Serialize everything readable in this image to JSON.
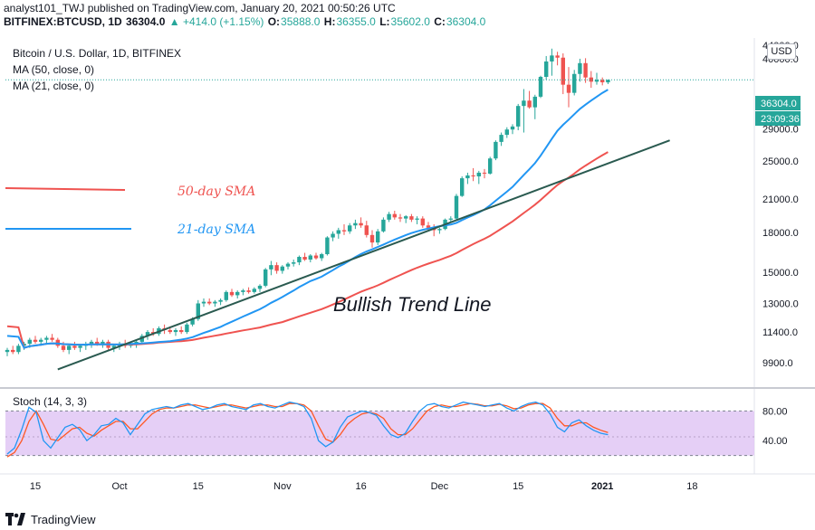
{
  "header": {
    "publisher_line": "analyst101_TWJ published on TradingView.com, January 20, 2021 00:50:26 UTC",
    "symbol": "BITFINEX:BTCUSD, 1D",
    "last": "36304.0",
    "change": "▲ +414.0 (+1.15%)",
    "o_label": "O:",
    "o": "35888.0",
    "h_label": "H:",
    "h": "36355.0",
    "l_label": "L:",
    "l": "35602.0",
    "c_label": "C:",
    "c": "36304.0"
  },
  "legend": {
    "title": "Bitcoin / U.S. Dollar, 1D, BITFINEX",
    "ma50": "MA (50, close, 0)",
    "ma21": "MA (21, close, 0)"
  },
  "stoch_label": "Stoch (14, 3, 3)",
  "currency": "USD",
  "price_tag": "36304.0",
  "countdown_tag": "23:09:36",
  "annotations": {
    "sma50": "50-day SMA",
    "sma21": "21-day SMA",
    "trend": "Bullish Trend Line"
  },
  "footer": {
    "brand": "TradingView"
  },
  "colors": {
    "up": "#26a69a",
    "down": "#ef5350",
    "ma50": "#ef5350",
    "ma21": "#2196f3",
    "trend": "#2a5a50",
    "stoch_k": "#2196f3",
    "stoch_d": "#ff5722",
    "stoch_band": "#e1c7f5"
  },
  "chart_data": {
    "type": "candlestick",
    "y_ticks": [
      "40000.0",
      "29000.0",
      "25000.0",
      "21000.0",
      "18000.0",
      "15000.0",
      "13000.0",
      "11400.0",
      "9900.0"
    ],
    "y_ticks_top": "44000.0",
    "x_ticks": [
      "15",
      "Oct",
      "15",
      "Nov",
      "16",
      "Dec",
      "15",
      "2021",
      "18"
    ],
    "stoch_ticks": [
      "80.00",
      "40.00"
    ],
    "ylim": [
      9000,
      44000
    ],
    "stoch_ylim": [
      0,
      100
    ],
    "stoch_band": [
      20,
      80
    ],
    "candles": [
      {
        "o": 10400,
        "h": 10600,
        "l": 10200,
        "c": 10500
      },
      {
        "o": 10500,
        "h": 10700,
        "l": 10300,
        "c": 10400
      },
      {
        "o": 10400,
        "h": 10800,
        "l": 10300,
        "c": 10700
      },
      {
        "o": 10700,
        "h": 10900,
        "l": 10500,
        "c": 10800
      },
      {
        "o": 10800,
        "h": 11100,
        "l": 10600,
        "c": 11000
      },
      {
        "o": 11000,
        "h": 11200,
        "l": 10800,
        "c": 10900
      },
      {
        "o": 10900,
        "h": 11100,
        "l": 10700,
        "c": 11000
      },
      {
        "o": 11000,
        "h": 11200,
        "l": 10800,
        "c": 11100
      },
      {
        "o": 11100,
        "h": 11300,
        "l": 10900,
        "c": 11000
      },
      {
        "o": 11000,
        "h": 11100,
        "l": 10600,
        "c": 10700
      },
      {
        "o": 10700,
        "h": 10900,
        "l": 10400,
        "c": 10500
      },
      {
        "o": 10500,
        "h": 10800,
        "l": 10300,
        "c": 10700
      },
      {
        "o": 10700,
        "h": 10900,
        "l": 10500,
        "c": 10600
      },
      {
        "o": 10600,
        "h": 10800,
        "l": 10400,
        "c": 10700
      },
      {
        "o": 10700,
        "h": 10900,
        "l": 10500,
        "c": 10800
      },
      {
        "o": 10800,
        "h": 11000,
        "l": 10600,
        "c": 10900
      },
      {
        "o": 10900,
        "h": 11100,
        "l": 10700,
        "c": 10800
      },
      {
        "o": 10800,
        "h": 11000,
        "l": 10600,
        "c": 10900
      },
      {
        "o": 10900,
        "h": 11000,
        "l": 10500,
        "c": 10600
      },
      {
        "o": 10600,
        "h": 10800,
        "l": 10400,
        "c": 10700
      },
      {
        "o": 10700,
        "h": 10900,
        "l": 10500,
        "c": 10800
      },
      {
        "o": 10800,
        "h": 11000,
        "l": 10600,
        "c": 10700
      },
      {
        "o": 10700,
        "h": 10900,
        "l": 10600,
        "c": 10800
      },
      {
        "o": 10800,
        "h": 11000,
        "l": 10600,
        "c": 10900
      },
      {
        "o": 10900,
        "h": 11300,
        "l": 10800,
        "c": 11200
      },
      {
        "o": 11200,
        "h": 11500,
        "l": 11000,
        "c": 11400
      },
      {
        "o": 11400,
        "h": 11600,
        "l": 11200,
        "c": 11300
      },
      {
        "o": 11300,
        "h": 11700,
        "l": 11200,
        "c": 11600
      },
      {
        "o": 11600,
        "h": 11800,
        "l": 11300,
        "c": 11500
      },
      {
        "o": 11500,
        "h": 11700,
        "l": 11300,
        "c": 11400
      },
      {
        "o": 11400,
        "h": 11600,
        "l": 11200,
        "c": 11500
      },
      {
        "o": 11500,
        "h": 11700,
        "l": 11300,
        "c": 11400
      },
      {
        "o": 11400,
        "h": 11900,
        "l": 11300,
        "c": 11800
      },
      {
        "o": 11800,
        "h": 12200,
        "l": 11700,
        "c": 12100
      },
      {
        "o": 12100,
        "h": 13200,
        "l": 12000,
        "c": 13000
      },
      {
        "o": 13000,
        "h": 13300,
        "l": 12800,
        "c": 13100
      },
      {
        "o": 13100,
        "h": 13300,
        "l": 12900,
        "c": 13000
      },
      {
        "o": 13000,
        "h": 13200,
        "l": 12800,
        "c": 13100
      },
      {
        "o": 13100,
        "h": 13300,
        "l": 12900,
        "c": 13200
      },
      {
        "o": 13200,
        "h": 13800,
        "l": 13100,
        "c": 13700
      },
      {
        "o": 13700,
        "h": 13900,
        "l": 13400,
        "c": 13500
      },
      {
        "o": 13500,
        "h": 13800,
        "l": 13300,
        "c": 13700
      },
      {
        "o": 13700,
        "h": 13900,
        "l": 13500,
        "c": 13800
      },
      {
        "o": 13800,
        "h": 14000,
        "l": 13600,
        "c": 13700
      },
      {
        "o": 13700,
        "h": 14000,
        "l": 13600,
        "c": 13900
      },
      {
        "o": 13900,
        "h": 14200,
        "l": 13700,
        "c": 14100
      },
      {
        "o": 14100,
        "h": 15300,
        "l": 14000,
        "c": 15200
      },
      {
        "o": 15200,
        "h": 15800,
        "l": 14800,
        "c": 15500
      },
      {
        "o": 15500,
        "h": 15700,
        "l": 14900,
        "c": 15100
      },
      {
        "o": 15100,
        "h": 15500,
        "l": 14900,
        "c": 15400
      },
      {
        "o": 15400,
        "h": 15700,
        "l": 15200,
        "c": 15600
      },
      {
        "o": 15600,
        "h": 15900,
        "l": 15400,
        "c": 15700
      },
      {
        "o": 15700,
        "h": 16200,
        "l": 15500,
        "c": 16100
      },
      {
        "o": 16100,
        "h": 16400,
        "l": 15800,
        "c": 15900
      },
      {
        "o": 15900,
        "h": 16300,
        "l": 15700,
        "c": 16200
      },
      {
        "o": 16200,
        "h": 16400,
        "l": 15900,
        "c": 16000
      },
      {
        "o": 16000,
        "h": 16400,
        "l": 15800,
        "c": 16300
      },
      {
        "o": 16300,
        "h": 17700,
        "l": 16200,
        "c": 17600
      },
      {
        "o": 17600,
        "h": 18100,
        "l": 17300,
        "c": 17900
      },
      {
        "o": 17900,
        "h": 18400,
        "l": 17500,
        "c": 18200
      },
      {
        "o": 18200,
        "h": 18700,
        "l": 17800,
        "c": 18100
      },
      {
        "o": 18100,
        "h": 18800,
        "l": 17900,
        "c": 18600
      },
      {
        "o": 18600,
        "h": 19100,
        "l": 18300,
        "c": 18800
      },
      {
        "o": 18800,
        "h": 19300,
        "l": 18400,
        "c": 18600
      },
      {
        "o": 18600,
        "h": 19000,
        "l": 17600,
        "c": 17800
      },
      {
        "o": 17800,
        "h": 18200,
        "l": 16800,
        "c": 17200
      },
      {
        "o": 17200,
        "h": 18300,
        "l": 17000,
        "c": 18100
      },
      {
        "o": 18100,
        "h": 19300,
        "l": 18000,
        "c": 19100
      },
      {
        "o": 19100,
        "h": 19800,
        "l": 18900,
        "c": 19600
      },
      {
        "o": 19600,
        "h": 19900,
        "l": 19100,
        "c": 19300
      },
      {
        "o": 19300,
        "h": 19600,
        "l": 18900,
        "c": 19200
      },
      {
        "o": 19200,
        "h": 19500,
        "l": 18800,
        "c": 19400
      },
      {
        "o": 19400,
        "h": 19600,
        "l": 18900,
        "c": 19100
      },
      {
        "o": 19100,
        "h": 19400,
        "l": 18700,
        "c": 19200
      },
      {
        "o": 19200,
        "h": 19400,
        "l": 18400,
        "c": 18600
      },
      {
        "o": 18600,
        "h": 18900,
        "l": 18200,
        "c": 18400
      },
      {
        "o": 18400,
        "h": 18700,
        "l": 17700,
        "c": 18200
      },
      {
        "o": 18200,
        "h": 18400,
        "l": 17900,
        "c": 18300
      },
      {
        "o": 18300,
        "h": 19200,
        "l": 18200,
        "c": 19100
      },
      {
        "o": 19100,
        "h": 19400,
        "l": 18900,
        "c": 19200
      },
      {
        "o": 19200,
        "h": 21500,
        "l": 19100,
        "c": 21300
      },
      {
        "o": 21300,
        "h": 23300,
        "l": 21200,
        "c": 23100
      },
      {
        "o": 23100,
        "h": 23700,
        "l": 22500,
        "c": 23400
      },
      {
        "o": 23400,
        "h": 24200,
        "l": 22800,
        "c": 23300
      },
      {
        "o": 23300,
        "h": 23900,
        "l": 22500,
        "c": 23700
      },
      {
        "o": 23700,
        "h": 24100,
        "l": 23100,
        "c": 23600
      },
      {
        "o": 23600,
        "h": 25500,
        "l": 23500,
        "c": 25300
      },
      {
        "o": 25300,
        "h": 27500,
        "l": 25100,
        "c": 27300
      },
      {
        "o": 27300,
        "h": 28500,
        "l": 26800,
        "c": 28200
      },
      {
        "o": 28200,
        "h": 29200,
        "l": 27800,
        "c": 28900
      },
      {
        "o": 28900,
        "h": 29600,
        "l": 28300,
        "c": 29300
      },
      {
        "o": 29300,
        "h": 32500,
        "l": 28800,
        "c": 32200
      },
      {
        "o": 32200,
        "h": 34800,
        "l": 28500,
        "c": 33000
      },
      {
        "o": 33000,
        "h": 34500,
        "l": 31800,
        "c": 32000
      },
      {
        "o": 32000,
        "h": 33900,
        "l": 30300,
        "c": 33600
      },
      {
        "o": 33600,
        "h": 37000,
        "l": 33400,
        "c": 36800
      },
      {
        "o": 36800,
        "h": 40500,
        "l": 36300,
        "c": 39500
      },
      {
        "o": 39500,
        "h": 41900,
        "l": 37000,
        "c": 40600
      },
      {
        "o": 40600,
        "h": 41300,
        "l": 38800,
        "c": 40200
      },
      {
        "o": 40200,
        "h": 41000,
        "l": 34000,
        "c": 35500
      },
      {
        "o": 35500,
        "h": 38500,
        "l": 32000,
        "c": 34200
      },
      {
        "o": 34200,
        "h": 38000,
        "l": 33800,
        "c": 37300
      },
      {
        "o": 37300,
        "h": 40000,
        "l": 36000,
        "c": 39200
      },
      {
        "o": 39200,
        "h": 40100,
        "l": 35800,
        "c": 36700
      },
      {
        "o": 36700,
        "h": 37800,
        "l": 35000,
        "c": 36000
      },
      {
        "o": 36000,
        "h": 37500,
        "l": 35500,
        "c": 36300
      },
      {
        "o": 36300,
        "h": 36700,
        "l": 35400,
        "c": 35900
      },
      {
        "o": 35888,
        "h": 36355,
        "l": 35602,
        "c": 36304
      }
    ],
    "ma21_lead": [
      {
        "bar": 0,
        "v": 11200
      },
      {
        "bar": 2,
        "v": 11150
      }
    ],
    "ma50_lead": [
      {
        "bar": 0,
        "v": 11700
      },
      {
        "bar": 2,
        "v": 11650
      }
    ],
    "trend_line": [
      {
        "bar": 9,
        "v": 9600
      },
      {
        "bar": 118,
        "v": 27500
      }
    ],
    "stoch_k": [
      22,
      30,
      55,
      85,
      78,
      40,
      30,
      44,
      58,
      62,
      55,
      40,
      48,
      60,
      62,
      70,
      64,
      48,
      62,
      76,
      82,
      84,
      86,
      84,
      88,
      90,
      86,
      82,
      84,
      88,
      90,
      86,
      84,
      82,
      88,
      90,
      86,
      84,
      88,
      92,
      90,
      86,
      70,
      40,
      32,
      38,
      58,
      72,
      76,
      80,
      78,
      74,
      60,
      48,
      44,
      50,
      66,
      80,
      88,
      90,
      86,
      84,
      88,
      92,
      90,
      88,
      86,
      88,
      90,
      84,
      80,
      86,
      90,
      92,
      88,
      76,
      58,
      52,
      64,
      68,
      60,
      54,
      50,
      48
    ],
    "stoch_d": [
      18,
      24,
      40,
      66,
      80,
      62,
      42,
      40,
      48,
      56,
      58,
      50,
      46,
      54,
      60,
      66,
      66,
      56,
      56,
      66,
      76,
      82,
      84,
      84,
      86,
      88,
      88,
      86,
      84,
      86,
      88,
      88,
      86,
      84,
      86,
      88,
      88,
      86,
      86,
      90,
      90,
      88,
      80,
      60,
      42,
      38,
      48,
      62,
      70,
      76,
      78,
      76,
      70,
      56,
      48,
      48,
      56,
      68,
      80,
      86,
      88,
      86,
      86,
      88,
      90,
      89,
      87,
      87,
      89,
      87,
      83,
      84,
      88,
      90,
      90,
      84,
      70,
      60,
      60,
      64,
      64,
      58,
      54,
      51
    ]
  }
}
